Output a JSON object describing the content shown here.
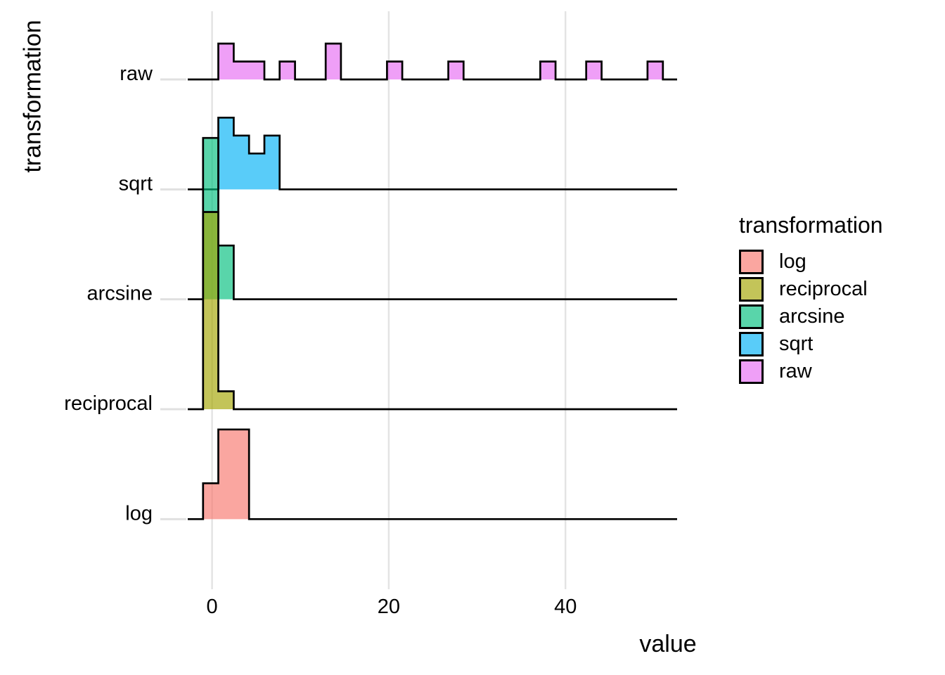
{
  "figure": {
    "y_axis_title": "transformation",
    "x_axis_title": "value"
  },
  "legend": {
    "title": "transformation",
    "items": [
      {
        "label": "log",
        "color": "#F8766D"
      },
      {
        "label": "reciprocal",
        "color": "#A3A500"
      },
      {
        "label": "arcsine",
        "color": "#00BF7D"
      },
      {
        "label": "sqrt",
        "color": "#00B0F6"
      },
      {
        "label": "raw",
        "color": "#E76BF3"
      }
    ]
  },
  "chart_data": {
    "type": "bar",
    "subtype": "histogram-ridgeline",
    "title": "",
    "xlabel": "value",
    "ylabel": "transformation",
    "x_ticks": [
      0,
      20,
      40
    ],
    "xlim": [
      -3.5,
      52.6
    ],
    "bin_width": 1.735,
    "categories_top_to_bottom": [
      "raw",
      "sqrt",
      "arcsine",
      "reciprocal",
      "log"
    ],
    "grid": "vertical-only",
    "legend_position": "right",
    "fill_alpha": 0.65,
    "counts_unit_note": "bars given as [bin_start, bin_end, count]",
    "series": [
      {
        "name": "raw",
        "color": "#E76BF3",
        "bars": [
          [
            0.71,
            2.45,
            2
          ],
          [
            2.45,
            4.19,
            1
          ],
          [
            4.19,
            5.92,
            1
          ],
          [
            7.65,
            9.39,
            1
          ],
          [
            12.86,
            14.59,
            2
          ],
          [
            19.8,
            21.53,
            1
          ],
          [
            26.74,
            28.47,
            1
          ],
          [
            37.15,
            38.88,
            1
          ],
          [
            42.35,
            44.09,
            1
          ],
          [
            49.29,
            51.03,
            1
          ]
        ]
      },
      {
        "name": "sqrt",
        "color": "#00B0F6",
        "bars": [
          [
            0.71,
            2.45,
            4
          ],
          [
            2.45,
            4.19,
            3
          ],
          [
            4.19,
            5.92,
            2
          ],
          [
            5.92,
            7.65,
            3
          ]
        ]
      },
      {
        "name": "arcsine",
        "color": "#00BF7D",
        "bars": [
          [
            -1.02,
            0.71,
            9
          ],
          [
            0.71,
            2.45,
            3
          ]
        ]
      },
      {
        "name": "reciprocal",
        "color": "#A3A500",
        "bars": [
          [
            -1.02,
            0.71,
            11
          ],
          [
            0.71,
            2.45,
            1
          ]
        ]
      },
      {
        "name": "log",
        "color": "#F8766D",
        "bars": [
          [
            -1.02,
            0.71,
            2
          ],
          [
            0.71,
            2.45,
            5
          ],
          [
            2.45,
            4.19,
            5
          ]
        ]
      }
    ]
  }
}
